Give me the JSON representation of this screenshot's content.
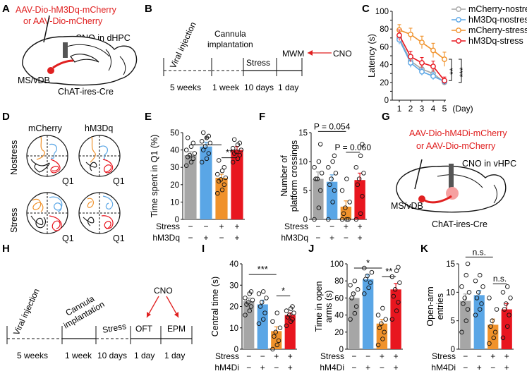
{
  "panel_labels": [
    "A",
    "B",
    "C",
    "D",
    "E",
    "F",
    "G",
    "H",
    "I",
    "J",
    "K"
  ],
  "colors": {
    "gray": "#a6a6a6",
    "blue": "#5aa6e6",
    "orange": "#f0922b",
    "red": "#e8161f",
    "black": "#111111",
    "brain_red": "#e02020"
  },
  "panel_a": {
    "virus_line1": "AAV-Dio-hM3Dq-mCherry",
    "virus_line2": "or AAV-Dio-mCherry",
    "cno_label": "CNO in dHPC",
    "region_label": "MS/vDB",
    "mouse_label": "ChAT-ires-Cre"
  },
  "panel_b": {
    "steps": [
      "Viral injection",
      "Cannula",
      "implantation",
      "Stress",
      "MWM",
      "CNO"
    ],
    "durations": [
      "5 weeks",
      "1 week",
      "10 days",
      "1 day"
    ]
  },
  "panel_d": {
    "col_labels": [
      "mCherry",
      "hM3Dq"
    ],
    "row_labels": [
      "Nostress",
      "Stress"
    ],
    "quadrant_label": "Q1"
  },
  "panel_g": {
    "virus_line1": "AAV-Dio-hM4Di-mCherry",
    "virus_line2": "or AAV-Dio-mCherry",
    "cno_label": "CNO in vHPC",
    "region_label": "MS/vDB",
    "mouse_label": "ChAT-ires-Cre"
  },
  "panel_h": {
    "steps": [
      "Viral injection",
      "Cannula",
      "implantation",
      "Stress",
      "CNO",
      "OFT",
      "EPM"
    ],
    "durations": [
      "5 weeks",
      "1 week",
      "10 days",
      "1 day",
      "1 day"
    ]
  },
  "chart_data": [
    {
      "panel": "C",
      "type": "line",
      "ylabel": "Latency (s)",
      "x": [
        1,
        2,
        3,
        4,
        5
      ],
      "x_tick_labels": [
        "1",
        "2",
        "3",
        "4",
        "5",
        "(Day)"
      ],
      "ylim": [
        0,
        100
      ],
      "y_ticks": [
        0,
        10,
        20,
        30,
        40,
        50,
        60,
        70,
        80,
        90,
        100
      ],
      "series": [
        {
          "name": "mCherry-nostress",
          "color": "#a6a6a6",
          "values": [
            70,
            44,
            35,
            30,
            20
          ],
          "err": [
            5,
            5,
            5,
            4,
            3
          ]
        },
        {
          "name": "hM3Dq-nostress",
          "color": "#5aa6e6",
          "values": [
            68,
            42,
            32,
            27,
            21
          ],
          "err": [
            5,
            5,
            4,
            4,
            3
          ]
        },
        {
          "name": "mCherry-stress",
          "color": "#f0922b",
          "values": [
            79,
            74,
            65,
            56,
            46
          ],
          "err": [
            6,
            7,
            7,
            8,
            8
          ]
        },
        {
          "name": "hM3Dq-stress",
          "color": "#e8161f",
          "values": [
            73,
            49,
            42,
            38,
            22
          ],
          "err": [
            6,
            6,
            6,
            6,
            4
          ]
        }
      ],
      "significance": [
        "**",
        "***"
      ]
    },
    {
      "panel": "E",
      "type": "bar",
      "ylabel": "Time spent in Q1 (%)",
      "ylim": [
        0,
        50
      ],
      "y_ticks": [
        0,
        10,
        20,
        30,
        40,
        50
      ],
      "values": [
        37,
        42,
        24,
        40
      ],
      "err": [
        2,
        2.5,
        2,
        2
      ],
      "colors": [
        "#a6a6a6",
        "#5aa6e6",
        "#f0922b",
        "#e8161f"
      ],
      "stress": [
        "−",
        "−",
        "+",
        "+"
      ],
      "drug": [
        "−",
        "+",
        "−",
        "+"
      ],
      "row_labels": [
        "Stress",
        "hM3Dq"
      ],
      "significance": [
        {
          "from": 0,
          "to": 2,
          "label": "*"
        },
        {
          "from": 2,
          "to": 3,
          "label": "**"
        }
      ],
      "points": [
        [
          31,
          33,
          35,
          36,
          37,
          38,
          40,
          42,
          44,
          47
        ],
        [
          33,
          35,
          38,
          40,
          42,
          44,
          45,
          47,
          48,
          50
        ],
        [
          15,
          17,
          20,
          22,
          23,
          24,
          26,
          28,
          30,
          34
        ],
        [
          33,
          35,
          37,
          38,
          39,
          40,
          41,
          43,
          44,
          46
        ]
      ]
    },
    {
      "panel": "F",
      "type": "bar",
      "ylabel": "Number of platform crossings",
      "ylim": [
        0,
        15
      ],
      "y_ticks": [
        0,
        5,
        10,
        15
      ],
      "values": [
        7,
        6.5,
        2.2,
        6.8
      ],
      "err": [
        1.2,
        1.2,
        1.0,
        1.2
      ],
      "colors": [
        "#a6a6a6",
        "#5aa6e6",
        "#f0922b",
        "#e8161f"
      ],
      "stress": [
        "−",
        "−",
        "+",
        "+"
      ],
      "drug": [
        "−",
        "+",
        "−",
        "+"
      ],
      "row_labels": [
        "Stress",
        "hM3Dq"
      ],
      "significance": [
        {
          "from": 0,
          "to": 2,
          "label": "P = 0.054"
        },
        {
          "from": 2,
          "to": 3,
          "label": "P = 0.060"
        }
      ],
      "points": [
        [
          0,
          2,
          5,
          7,
          7,
          8,
          9,
          10,
          13
        ],
        [
          0,
          3,
          5,
          6,
          7,
          8,
          9,
          10,
          11
        ],
        [
          0,
          0,
          0,
          1,
          2,
          3,
          5,
          7
        ],
        [
          0,
          1,
          4,
          6,
          7,
          8,
          9,
          11,
          13
        ]
      ]
    },
    {
      "panel": "I",
      "type": "bar",
      "ylabel": "Central time (s)",
      "ylim": [
        0,
        40
      ],
      "y_ticks": [
        0,
        10,
        20,
        30,
        40
      ],
      "values": [
        22.5,
        21,
        8.5,
        16
      ],
      "err": [
        1.5,
        2,
        2,
        1
      ],
      "colors": [
        "#a6a6a6",
        "#5aa6e6",
        "#f0922b",
        "#e8161f"
      ],
      "stress": [
        "−",
        "−",
        "+",
        "+"
      ],
      "drug": [
        "−",
        "+",
        "−",
        "+"
      ],
      "row_labels": [
        "Stress",
        "hM4Di"
      ],
      "significance": [
        {
          "from": 0,
          "to": 2,
          "label": "***"
        },
        {
          "from": 2,
          "to": 3,
          "label": "*"
        }
      ],
      "points": [
        [
          16,
          18,
          20,
          21,
          22,
          23,
          24,
          26,
          27
        ],
        [
          12,
          14,
          17,
          20,
          22,
          24,
          26,
          27
        ],
        [
          0,
          2,
          4,
          6,
          8,
          10,
          13,
          17
        ],
        [
          11,
          13,
          14,
          15,
          16,
          17,
          18,
          19,
          20
        ]
      ]
    },
    {
      "panel": "J",
      "type": "bar",
      "ylabel": "Time in open arms (s)",
      "ylim": [
        0,
        100
      ],
      "y_ticks": [
        0,
        20,
        40,
        60,
        80,
        100
      ],
      "values": [
        60,
        82,
        30,
        70
      ],
      "err": [
        6,
        5,
        5,
        7
      ],
      "colors": [
        "#a6a6a6",
        "#5aa6e6",
        "#f0922b",
        "#e8161f"
      ],
      "stress": [
        "−",
        "−",
        "+",
        "+"
      ],
      "drug": [
        "−",
        "+",
        "−",
        "+"
      ],
      "row_labels": [
        "Stress",
        "hM4Di"
      ],
      "significance": [
        {
          "from": 0,
          "to": 2,
          "label": "*"
        },
        {
          "from": 2,
          "to": 3,
          "label": "**"
        }
      ],
      "points": [
        [
          35,
          42,
          50,
          60,
          65,
          70,
          75,
          80
        ],
        [
          65,
          72,
          78,
          82,
          86,
          90,
          95
        ],
        [
          5,
          12,
          20,
          25,
          30,
          35,
          40,
          48
        ],
        [
          35,
          45,
          55,
          62,
          70,
          78,
          85,
          92,
          96
        ]
      ]
    },
    {
      "panel": "K",
      "type": "bar",
      "ylabel": "Open-arm entries",
      "ylim": [
        0,
        15
      ],
      "y_ticks": [
        0,
        5,
        10,
        15
      ],
      "values": [
        8.5,
        9.5,
        4.3,
        7
      ],
      "err": [
        1.2,
        0.8,
        1.0,
        1.0
      ],
      "colors": [
        "#a6a6a6",
        "#5aa6e6",
        "#f0922b",
        "#e8161f"
      ],
      "stress": [
        "−",
        "−",
        "+",
        "+"
      ],
      "drug": [
        "−",
        "+",
        "−",
        "+"
      ],
      "row_labels": [
        "Stress",
        "hM4Di"
      ],
      "significance": [
        {
          "from": 0,
          "to": 2,
          "label": "n.s."
        },
        {
          "from": 2,
          "to": 3,
          "label": "n.s."
        }
      ],
      "points": [
        [
          3,
          5,
          7,
          8,
          9,
          10,
          11,
          13,
          15
        ],
        [
          6,
          7,
          8,
          9,
          10,
          11,
          12,
          13
        ],
        [
          1,
          2,
          3,
          4,
          5,
          7,
          9
        ],
        [
          2,
          4,
          6,
          7,
          8,
          9,
          10,
          11
        ]
      ]
    }
  ]
}
